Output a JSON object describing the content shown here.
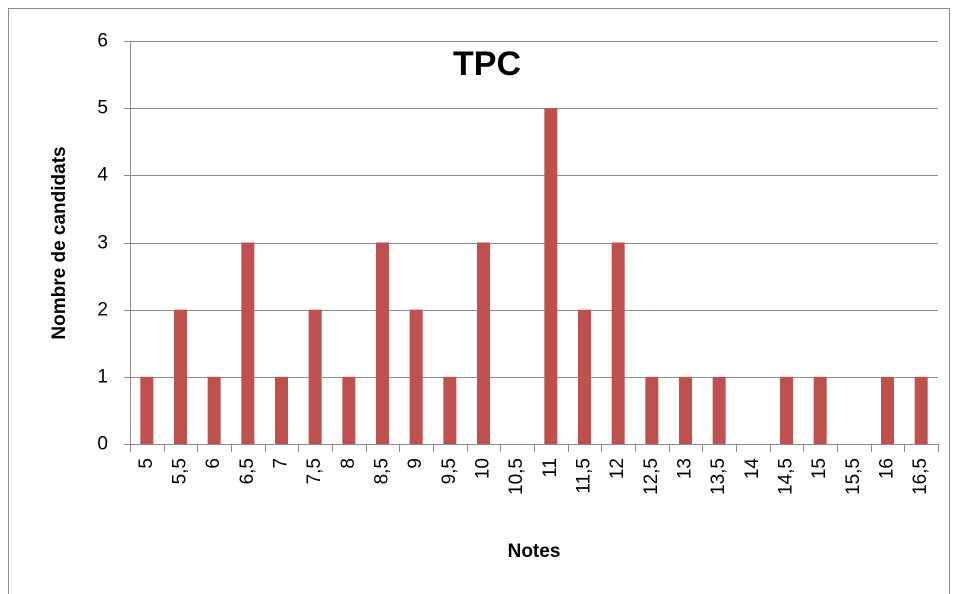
{
  "chart_data": {
    "type": "bar",
    "title": "TPC",
    "x_label": "Notes",
    "y_label": "Nombre de candidats",
    "categories": [
      "5",
      "5,5",
      "6",
      "6,5",
      "7",
      "7,5",
      "8",
      "8,5",
      "9",
      "9,5",
      "10",
      "10,5",
      "11",
      "11,5",
      "12",
      "12,5",
      "13",
      "13,5",
      "14",
      "14,5",
      "15",
      "15,5",
      "16",
      "16,5"
    ],
    "values": [
      1,
      2,
      1,
      3,
      1,
      2,
      1,
      3,
      2,
      1,
      3,
      0,
      5,
      2,
      3,
      1,
      1,
      1,
      0,
      1,
      1,
      0,
      1,
      1
    ],
    "color": "#c0504d",
    "ylim": [
      0,
      6
    ],
    "yticks": [
      0,
      1,
      2,
      3,
      4,
      5,
      6
    ],
    "grid": true
  }
}
